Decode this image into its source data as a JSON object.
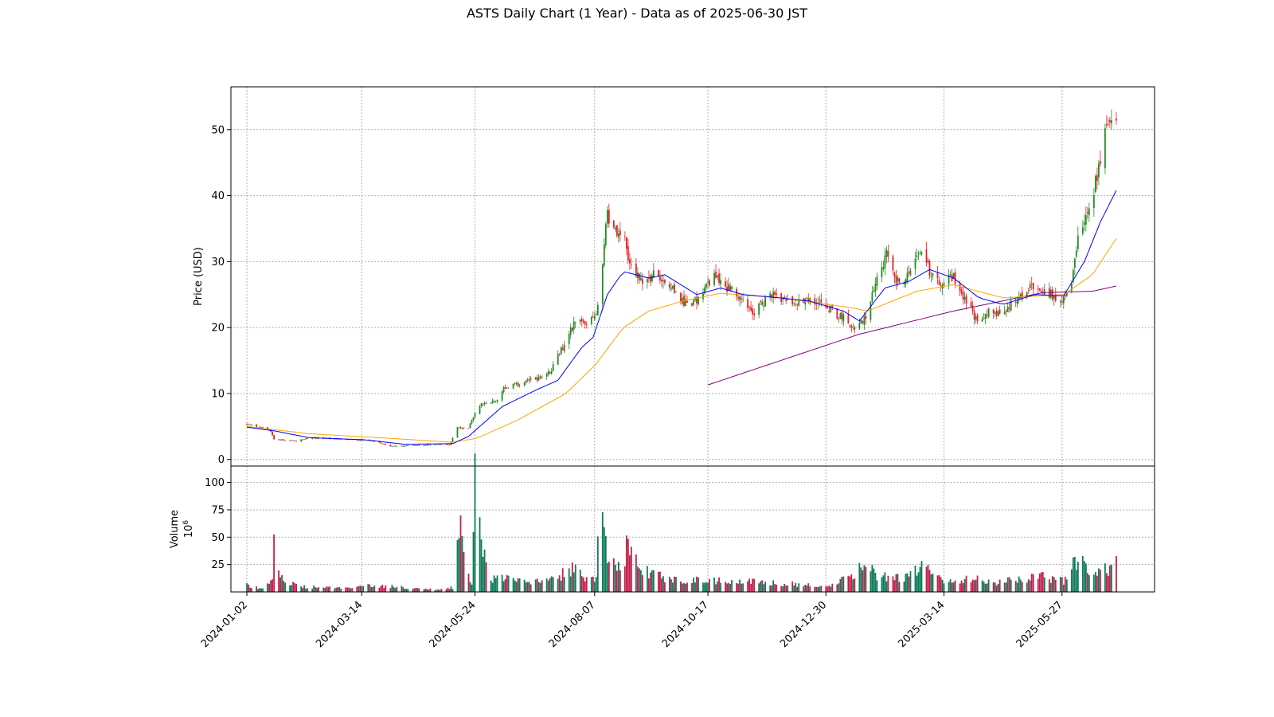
{
  "chart_data": {
    "type": "candlestick",
    "title": "ASTS Daily Chart (1 Year) - Data as of 2025-06-30 JST",
    "price_panel": {
      "ylabel": "Price (USD)",
      "ylim": [
        -1,
        56.5
      ],
      "yticks": [
        0,
        10,
        20,
        30,
        40,
        50
      ],
      "grid": true
    },
    "volume_panel": {
      "ylabel": "Volume",
      "unit_label": "10",
      "unit_exponent": "6",
      "ylim": [
        0,
        115
      ],
      "yticks": [
        25,
        50,
        75,
        100
      ],
      "grid": true
    },
    "x_range": [
      "2023-12-23",
      "2025-07-24"
    ],
    "xtick_labels": [
      "2024-01-02",
      "2024-03-14",
      "2024-05-24",
      "2024-08-07",
      "2024-10-17",
      "2024-12-30",
      "2025-03-14",
      "2025-05-27"
    ],
    "colors": {
      "up": "#228B22",
      "down": "#E8202A",
      "volume_up": "#0E7A5A",
      "volume_down": "#C41E4A",
      "ma_short": "#0000FF",
      "ma_mid": "#FFA500",
      "ma_long": "#800080"
    },
    "price_path": [
      [
        "2024-01-02",
        5.3
      ],
      [
        "2024-01-10",
        4.9
      ],
      [
        "2024-01-16",
        4.6
      ],
      [
        "2024-01-19",
        3.1
      ],
      [
        "2024-02-02",
        2.8
      ],
      [
        "2024-02-12",
        3.3
      ],
      [
        "2024-03-01",
        3.1
      ],
      [
        "2024-03-20",
        2.9
      ],
      [
        "2024-04-01",
        2.0
      ],
      [
        "2024-04-15",
        2.1
      ],
      [
        "2024-05-01",
        2.3
      ],
      [
        "2024-05-08",
        2.2
      ],
      [
        "2024-05-13",
        4.8
      ],
      [
        "2024-05-20",
        4.9
      ],
      [
        "2024-05-24",
        7.0
      ],
      [
        "2024-05-28",
        8.5
      ],
      [
        "2024-06-06",
        9.0
      ],
      [
        "2024-06-12",
        11.0
      ],
      [
        "2024-06-25",
        11.7
      ],
      [
        "2024-07-01",
        12.2
      ],
      [
        "2024-07-10",
        13.3
      ],
      [
        "2024-07-18",
        17.0
      ],
      [
        "2024-07-25",
        20.5
      ],
      [
        "2024-08-02",
        21.0
      ],
      [
        "2024-08-08",
        22.0
      ],
      [
        "2024-08-12",
        30.0
      ],
      [
        "2024-08-15",
        37.0
      ],
      [
        "2024-08-19",
        35.0
      ],
      [
        "2024-08-26",
        33.0
      ],
      [
        "2024-08-30",
        29.0
      ],
      [
        "2024-09-06",
        27.0
      ],
      [
        "2024-09-13",
        28.0
      ],
      [
        "2024-09-23",
        26.5
      ],
      [
        "2024-09-30",
        24.0
      ],
      [
        "2024-10-07",
        23.5
      ],
      [
        "2024-10-14",
        25.0
      ],
      [
        "2024-10-21",
        28.0
      ],
      [
        "2024-10-28",
        26.5
      ],
      [
        "2024-11-08",
        24.0
      ],
      [
        "2024-11-15",
        22.5
      ],
      [
        "2024-11-25",
        25.0
      ],
      [
        "2024-12-05",
        24.0
      ],
      [
        "2024-12-13",
        23.5
      ],
      [
        "2024-12-20",
        24.5
      ],
      [
        "2025-01-03",
        22.5
      ],
      [
        "2025-01-10",
        21.5
      ],
      [
        "2025-01-17",
        19.5
      ],
      [
        "2025-01-24",
        22.0
      ],
      [
        "2025-01-31",
        27.0
      ],
      [
        "2025-02-06",
        31.0
      ],
      [
        "2025-02-12",
        27.0
      ],
      [
        "2025-02-20",
        27.5
      ],
      [
        "2025-02-28",
        32.0
      ],
      [
        "2025-03-05",
        28.5
      ],
      [
        "2025-03-12",
        26.0
      ],
      [
        "2025-03-20",
        28.0
      ],
      [
        "2025-03-28",
        24.0
      ],
      [
        "2025-04-04",
        20.5
      ],
      [
        "2025-04-10",
        22.5
      ],
      [
        "2025-04-17",
        22.0
      ],
      [
        "2025-04-25",
        23.5
      ],
      [
        "2025-05-05",
        25.5
      ],
      [
        "2025-05-12",
        26.5
      ],
      [
        "2025-05-20",
        25.0
      ],
      [
        "2025-05-28",
        24.0
      ],
      [
        "2025-06-02",
        27.0
      ],
      [
        "2025-06-06",
        34.0
      ],
      [
        "2025-06-12",
        38.0
      ],
      [
        "2025-06-18",
        43.0
      ],
      [
        "2025-06-23",
        51.0
      ],
      [
        "2025-06-26",
        52.0
      ],
      [
        "2025-06-30",
        50.5
      ]
    ],
    "volume_path": [
      [
        "2024-01-02",
        6
      ],
      [
        "2024-01-12",
        3
      ],
      [
        "2024-01-18",
        10
      ],
      [
        "2024-01-19",
        44
      ],
      [
        "2024-01-23",
        12
      ],
      [
        "2024-02-05",
        5
      ],
      [
        "2024-02-20",
        4
      ],
      [
        "2024-03-10",
        4
      ],
      [
        "2024-03-20",
        6
      ],
      [
        "2024-04-01",
        5
      ],
      [
        "2024-04-10",
        4
      ],
      [
        "2024-05-01",
        2
      ],
      [
        "2024-05-10",
        4
      ],
      [
        "2024-05-15",
        75
      ],
      [
        "2024-05-17",
        30
      ],
      [
        "2024-05-20",
        15
      ],
      [
        "2024-05-22",
        7
      ],
      [
        "2024-05-24",
        109
      ],
      [
        "2024-05-28",
        38
      ],
      [
        "2024-06-03",
        12
      ],
      [
        "2024-06-15",
        12
      ],
      [
        "2024-07-01",
        9
      ],
      [
        "2024-07-15",
        12
      ],
      [
        "2024-07-22",
        22
      ],
      [
        "2024-08-05",
        12
      ],
      [
        "2024-08-08",
        14
      ],
      [
        "2024-08-09",
        75
      ],
      [
        "2024-08-12",
        68
      ],
      [
        "2024-08-15",
        36
      ],
      [
        "2024-08-21",
        18
      ],
      [
        "2024-08-28",
        42
      ],
      [
        "2024-09-05",
        22
      ],
      [
        "2024-09-20",
        12
      ],
      [
        "2024-10-15",
        10
      ],
      [
        "2024-11-01",
        10
      ],
      [
        "2024-12-01",
        8
      ],
      [
        "2024-12-20",
        6
      ],
      [
        "2025-01-03",
        6
      ],
      [
        "2025-01-15",
        15
      ],
      [
        "2025-01-22",
        28
      ],
      [
        "2025-02-01",
        14
      ],
      [
        "2025-02-20",
        14
      ],
      [
        "2025-03-03",
        26
      ],
      [
        "2025-03-14",
        10
      ],
      [
        "2025-04-01",
        12
      ],
      [
        "2025-04-15",
        8
      ],
      [
        "2025-05-01",
        12
      ],
      [
        "2025-05-15",
        14
      ],
      [
        "2025-05-28",
        10
      ],
      [
        "2025-06-05",
        30
      ],
      [
        "2025-06-15",
        18
      ],
      [
        "2025-06-25",
        20
      ],
      [
        "2025-06-30",
        30
      ]
    ],
    "ma_short_path": [
      [
        "2024-01-02",
        4.9
      ],
      [
        "2024-01-20",
        4.3
      ],
      [
        "2024-02-10",
        3.3
      ],
      [
        "2024-03-15",
        3.0
      ],
      [
        "2024-04-10",
        2.3
      ],
      [
        "2024-05-10",
        2.4
      ],
      [
        "2024-05-20",
        3.5
      ],
      [
        "2024-06-10",
        8.0
      ],
      [
        "2024-07-01",
        10.5
      ],
      [
        "2024-07-15",
        12.0
      ],
      [
        "2024-07-30",
        17.0
      ],
      [
        "2024-08-06",
        18.5
      ],
      [
        "2024-08-15",
        25.0
      ],
      [
        "2024-08-25",
        28.5
      ],
      [
        "2024-09-10",
        27.5
      ],
      [
        "2024-09-20",
        28.0
      ],
      [
        "2024-10-10",
        25.0
      ],
      [
        "2024-10-25",
        26.0
      ],
      [
        "2024-11-08",
        25.0
      ],
      [
        "2024-12-01",
        24.5
      ],
      [
        "2024-12-20",
        24.0
      ],
      [
        "2025-01-10",
        22.5
      ],
      [
        "2025-01-20",
        21.0
      ],
      [
        "2025-02-05",
        26.0
      ],
      [
        "2025-02-20",
        27.0
      ],
      [
        "2025-03-05",
        28.8
      ],
      [
        "2025-03-20",
        27.5
      ],
      [
        "2025-04-05",
        24.5
      ],
      [
        "2025-04-20",
        23.5
      ],
      [
        "2025-05-10",
        25.0
      ],
      [
        "2025-05-28",
        24.8
      ],
      [
        "2025-06-10",
        30.0
      ],
      [
        "2025-06-20",
        36.0
      ],
      [
        "2025-06-30",
        40.8
      ]
    ],
    "ma_mid_path": [
      [
        "2024-01-02",
        5.0
      ],
      [
        "2024-02-10",
        3.9
      ],
      [
        "2024-04-01",
        3.2
      ],
      [
        "2024-05-10",
        2.6
      ],
      [
        "2024-05-25",
        3.2
      ],
      [
        "2024-06-20",
        6.0
      ],
      [
        "2024-07-20",
        10.0
      ],
      [
        "2024-08-08",
        14.5
      ],
      [
        "2024-08-25",
        20.0
      ],
      [
        "2024-09-10",
        22.5
      ],
      [
        "2024-10-01",
        24.0
      ],
      [
        "2024-10-25",
        25.2
      ],
      [
        "2024-12-01",
        24.5
      ],
      [
        "2025-01-15",
        23.0
      ],
      [
        "2025-01-25",
        22.5
      ],
      [
        "2025-02-25",
        25.5
      ],
      [
        "2025-03-20",
        26.5
      ],
      [
        "2025-04-20",
        24.5
      ],
      [
        "2025-05-28",
        25.0
      ],
      [
        "2025-06-15",
        28.0
      ],
      [
        "2025-06-30",
        33.5
      ]
    ],
    "ma_long_path": [
      [
        "2024-10-17",
        11.3
      ],
      [
        "2025-01-20",
        19.0
      ],
      [
        "2025-03-20",
        22.5
      ],
      [
        "2025-05-15",
        25.3
      ],
      [
        "2025-06-15",
        25.5
      ],
      [
        "2025-06-30",
        26.3
      ]
    ]
  }
}
